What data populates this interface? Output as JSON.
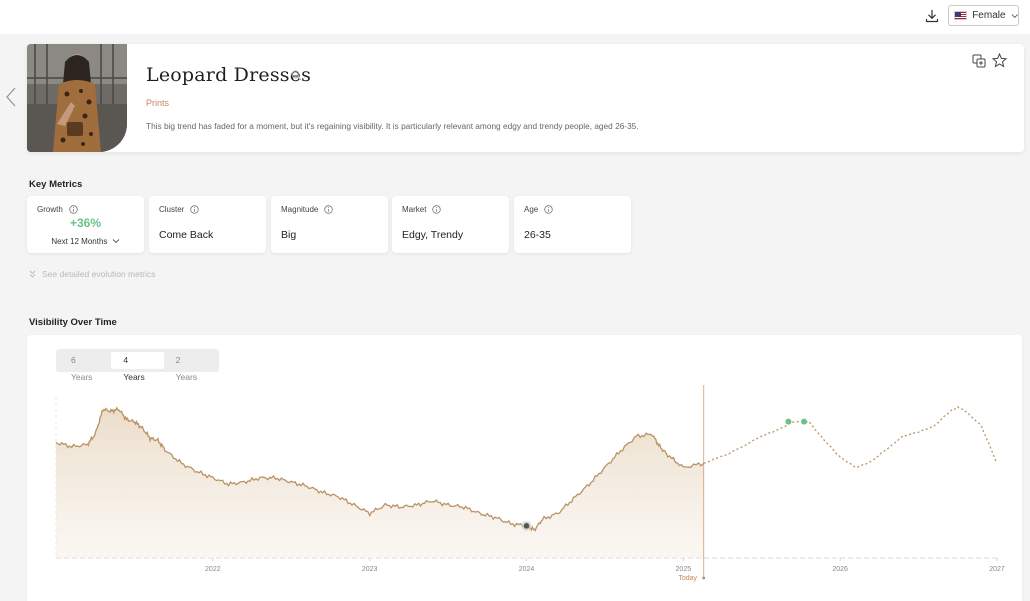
{
  "header": {
    "language": "Female",
    "download_icon": "download-icon"
  },
  "trend": {
    "title": "Leopard Dresses",
    "category": "Prints",
    "description": "This big trend has faded for a moment, but it's regaining visibility. It is particularly relevant among edgy and trendy people, aged 26-35."
  },
  "metrics_section": {
    "title": "Key Metrics",
    "growth_label": "Growth",
    "growth_value": "+36%",
    "growth_period": "Next 12 Months",
    "cluster_label": "Cluster",
    "cluster_value": "Come Back",
    "magnitude_label": "Magnitude",
    "magnitude_value": "Big",
    "market_label": "Market",
    "market_value": "Edgy, Trendy",
    "age_label": "Age",
    "age_value": "26-35",
    "detail_link": "See detailed evolution metrics"
  },
  "visibility_section": {
    "title": "Visibility Over Time",
    "tabs": [
      "6 Years",
      "4 Years",
      "2 Years"
    ],
    "active_tab": "4 Years",
    "today_label": "Today"
  },
  "colors": {
    "accent": "#c9855a",
    "line": "#b89464",
    "growth": "#6cc18a"
  },
  "chart_data": {
    "type": "line",
    "x_ticks": [
      "2022",
      "2023",
      "2024",
      "2025",
      "2026",
      "2027"
    ],
    "today_x": 2025.13,
    "series": [
      {
        "style": "solid-area",
        "x": [
          2021.0,
          2021.1,
          2021.2,
          2021.25,
          2021.3,
          2021.35,
          2021.4,
          2021.45,
          2021.5,
          2021.55,
          2021.6,
          2021.65,
          2021.7,
          2021.8,
          2021.9,
          2022.0,
          2022.1,
          2022.2,
          2022.3,
          2022.4,
          2022.5,
          2022.6,
          2022.7,
          2022.8,
          2022.9,
          2023.0,
          2023.1,
          2023.2,
          2023.3,
          2023.4,
          2023.5,
          2023.6,
          2023.7,
          2023.8,
          2023.9,
          2024.0,
          2024.05,
          2024.1,
          2024.2,
          2024.3,
          2024.4,
          2024.5,
          2024.6,
          2024.7,
          2024.8,
          2024.85,
          2024.9,
          2025.0,
          2025.13
        ],
        "y": [
          72,
          70,
          71,
          76,
          88,
          87,
          88,
          83,
          82,
          79,
          74,
          73,
          68,
          62,
          58,
          55,
          52,
          53,
          55,
          55,
          53,
          51,
          48,
          46,
          42,
          38,
          42,
          41,
          42,
          44,
          42,
          41,
          38,
          36,
          33,
          32,
          30,
          35,
          38,
          45,
          52,
          60,
          68,
          75,
          76,
          70,
          66,
          60,
          62
        ]
      },
      {
        "style": "dotted-forecast",
        "x": [
          2025.13,
          2025.3,
          2025.5,
          2025.6,
          2025.7,
          2025.8,
          2025.9,
          2026.0,
          2026.1,
          2026.2,
          2026.3,
          2026.4,
          2026.5,
          2026.6,
          2026.7,
          2026.75,
          2026.8,
          2026.9,
          2027.0
        ],
        "y": [
          62,
          67,
          75,
          78,
          82,
          82,
          73,
          65,
          60,
          63,
          69,
          75,
          77,
          80,
          87,
          89,
          87,
          80,
          62
        ]
      }
    ],
    "markers": [
      {
        "x": 2024.0,
        "y": 32,
        "color": "#555555"
      },
      {
        "x": 2025.67,
        "y": 82,
        "color": "#6cc18a"
      },
      {
        "x": 2025.77,
        "y": 82,
        "color": "#6cc18a"
      }
    ],
    "grid": false
  }
}
